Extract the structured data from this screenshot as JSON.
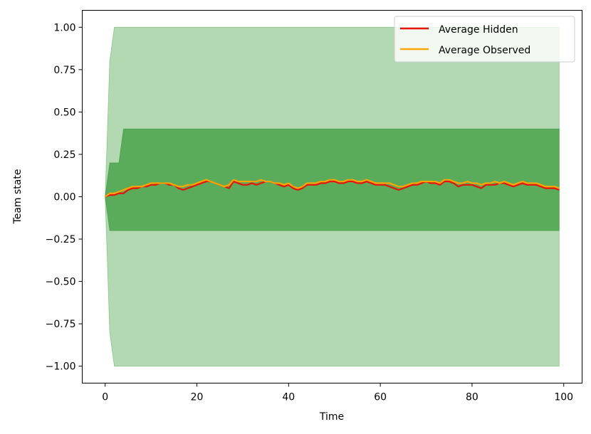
{
  "chart_data": {
    "type": "line",
    "xlabel": "Time",
    "ylabel": "Team state",
    "xlim": [
      -5,
      104
    ],
    "ylim": [
      -1.1,
      1.1
    ],
    "xticks": [
      0,
      20,
      40,
      60,
      80,
      100
    ],
    "xtick_labels": [
      "0",
      "20",
      "40",
      "60",
      "80",
      "100"
    ],
    "yticks": [
      1.0,
      0.75,
      0.5,
      0.25,
      0.0,
      -0.25,
      -0.5,
      -0.75,
      -1.0
    ],
    "ytick_labels": [
      "1.00",
      "0.75",
      "0.50",
      "0.25",
      "0.00",
      "−0.25",
      "−0.50",
      "−0.75",
      "−1.00"
    ],
    "grid": false,
    "legend_position": "upper right",
    "bands": [
      {
        "kind": "outer range",
        "color": "#b3d9b3",
        "edge_color": "#5cad5c",
        "x": [
          0,
          1,
          2,
          99
        ],
        "upper": [
          0,
          0.8,
          1.0,
          1.0
        ],
        "lower": [
          0,
          -0.8,
          -1.0,
          -1.0
        ]
      },
      {
        "kind": "inner range",
        "color": "#5aab5a",
        "edge_color": "#2e8b2e",
        "x": [
          0,
          1,
          3,
          4,
          99
        ],
        "upper": [
          0,
          0.2,
          0.2,
          0.4,
          0.4
        ],
        "lower": [
          0,
          -0.2,
          -0.2,
          -0.2,
          -0.2
        ]
      }
    ],
    "series": [
      {
        "name": "Average Hidden",
        "color": "#e8120c",
        "x": [
          0,
          1,
          2,
          3,
          4,
          5,
          6,
          7,
          8,
          9,
          10,
          11,
          12,
          13,
          14,
          15,
          16,
          17,
          18,
          19,
          20,
          21,
          22,
          23,
          24,
          25,
          26,
          27,
          28,
          29,
          30,
          31,
          32,
          33,
          34,
          35,
          36,
          37,
          38,
          39,
          40,
          41,
          42,
          43,
          44,
          45,
          46,
          47,
          48,
          49,
          50,
          51,
          52,
          53,
          54,
          55,
          56,
          57,
          58,
          59,
          60,
          61,
          62,
          63,
          64,
          65,
          66,
          67,
          68,
          69,
          70,
          71,
          72,
          73,
          74,
          75,
          76,
          77,
          78,
          79,
          80,
          81,
          82,
          83,
          84,
          85,
          86,
          87,
          88,
          89,
          90,
          91,
          92,
          93,
          94,
          95,
          96,
          97,
          98,
          99
        ],
        "values": [
          0.0,
          0.01,
          0.01,
          0.02,
          0.02,
          0.04,
          0.05,
          0.05,
          0.06,
          0.06,
          0.07,
          0.07,
          0.08,
          0.08,
          0.07,
          0.07,
          0.05,
          0.04,
          0.05,
          0.06,
          0.07,
          0.08,
          0.09,
          0.09,
          0.08,
          0.07,
          0.06,
          0.05,
          0.09,
          0.08,
          0.07,
          0.07,
          0.08,
          0.07,
          0.08,
          0.09,
          0.09,
          0.08,
          0.07,
          0.06,
          0.07,
          0.05,
          0.04,
          0.05,
          0.07,
          0.07,
          0.07,
          0.08,
          0.08,
          0.09,
          0.09,
          0.08,
          0.08,
          0.09,
          0.09,
          0.08,
          0.08,
          0.09,
          0.08,
          0.07,
          0.07,
          0.07,
          0.06,
          0.05,
          0.04,
          0.05,
          0.06,
          0.07,
          0.07,
          0.08,
          0.09,
          0.08,
          0.08,
          0.07,
          0.09,
          0.09,
          0.08,
          0.06,
          0.07,
          0.07,
          0.07,
          0.06,
          0.05,
          0.07,
          0.07,
          0.07,
          0.08,
          0.08,
          0.07,
          0.06,
          0.07,
          0.08,
          0.07,
          0.07,
          0.07,
          0.06,
          0.05,
          0.05,
          0.05,
          0.04
        ]
      },
      {
        "name": "Average Observed",
        "color": "#ffa500",
        "x": [
          0,
          1,
          2,
          3,
          4,
          5,
          6,
          7,
          8,
          9,
          10,
          11,
          12,
          13,
          14,
          15,
          16,
          17,
          18,
          19,
          20,
          21,
          22,
          23,
          24,
          25,
          26,
          27,
          28,
          29,
          30,
          31,
          32,
          33,
          34,
          35,
          36,
          37,
          38,
          39,
          40,
          41,
          42,
          43,
          44,
          45,
          46,
          47,
          48,
          49,
          50,
          51,
          52,
          53,
          54,
          55,
          56,
          57,
          58,
          59,
          60,
          61,
          62,
          63,
          64,
          65,
          66,
          67,
          68,
          69,
          70,
          71,
          72,
          73,
          74,
          75,
          76,
          77,
          78,
          79,
          80,
          81,
          82,
          83,
          84,
          85,
          86,
          87,
          88,
          89,
          90,
          91,
          92,
          93,
          94,
          95,
          96,
          97,
          98,
          99
        ],
        "values": [
          0.0,
          0.02,
          0.02,
          0.03,
          0.04,
          0.05,
          0.06,
          0.06,
          0.06,
          0.07,
          0.08,
          0.08,
          0.08,
          0.08,
          0.08,
          0.07,
          0.06,
          0.06,
          0.07,
          0.07,
          0.08,
          0.09,
          0.1,
          0.09,
          0.08,
          0.07,
          0.06,
          0.07,
          0.1,
          0.09,
          0.09,
          0.09,
          0.09,
          0.09,
          0.1,
          0.09,
          0.09,
          0.08,
          0.08,
          0.07,
          0.08,
          0.06,
          0.05,
          0.06,
          0.08,
          0.08,
          0.08,
          0.09,
          0.09,
          0.1,
          0.1,
          0.09,
          0.09,
          0.1,
          0.1,
          0.09,
          0.09,
          0.1,
          0.09,
          0.08,
          0.08,
          0.08,
          0.08,
          0.07,
          0.06,
          0.06,
          0.07,
          0.08,
          0.08,
          0.09,
          0.09,
          0.09,
          0.09,
          0.08,
          0.1,
          0.1,
          0.09,
          0.08,
          0.08,
          0.09,
          0.08,
          0.08,
          0.07,
          0.08,
          0.08,
          0.09,
          0.08,
          0.09,
          0.08,
          0.07,
          0.08,
          0.09,
          0.08,
          0.08,
          0.08,
          0.07,
          0.06,
          0.06,
          0.06,
          0.05
        ]
      }
    ]
  }
}
